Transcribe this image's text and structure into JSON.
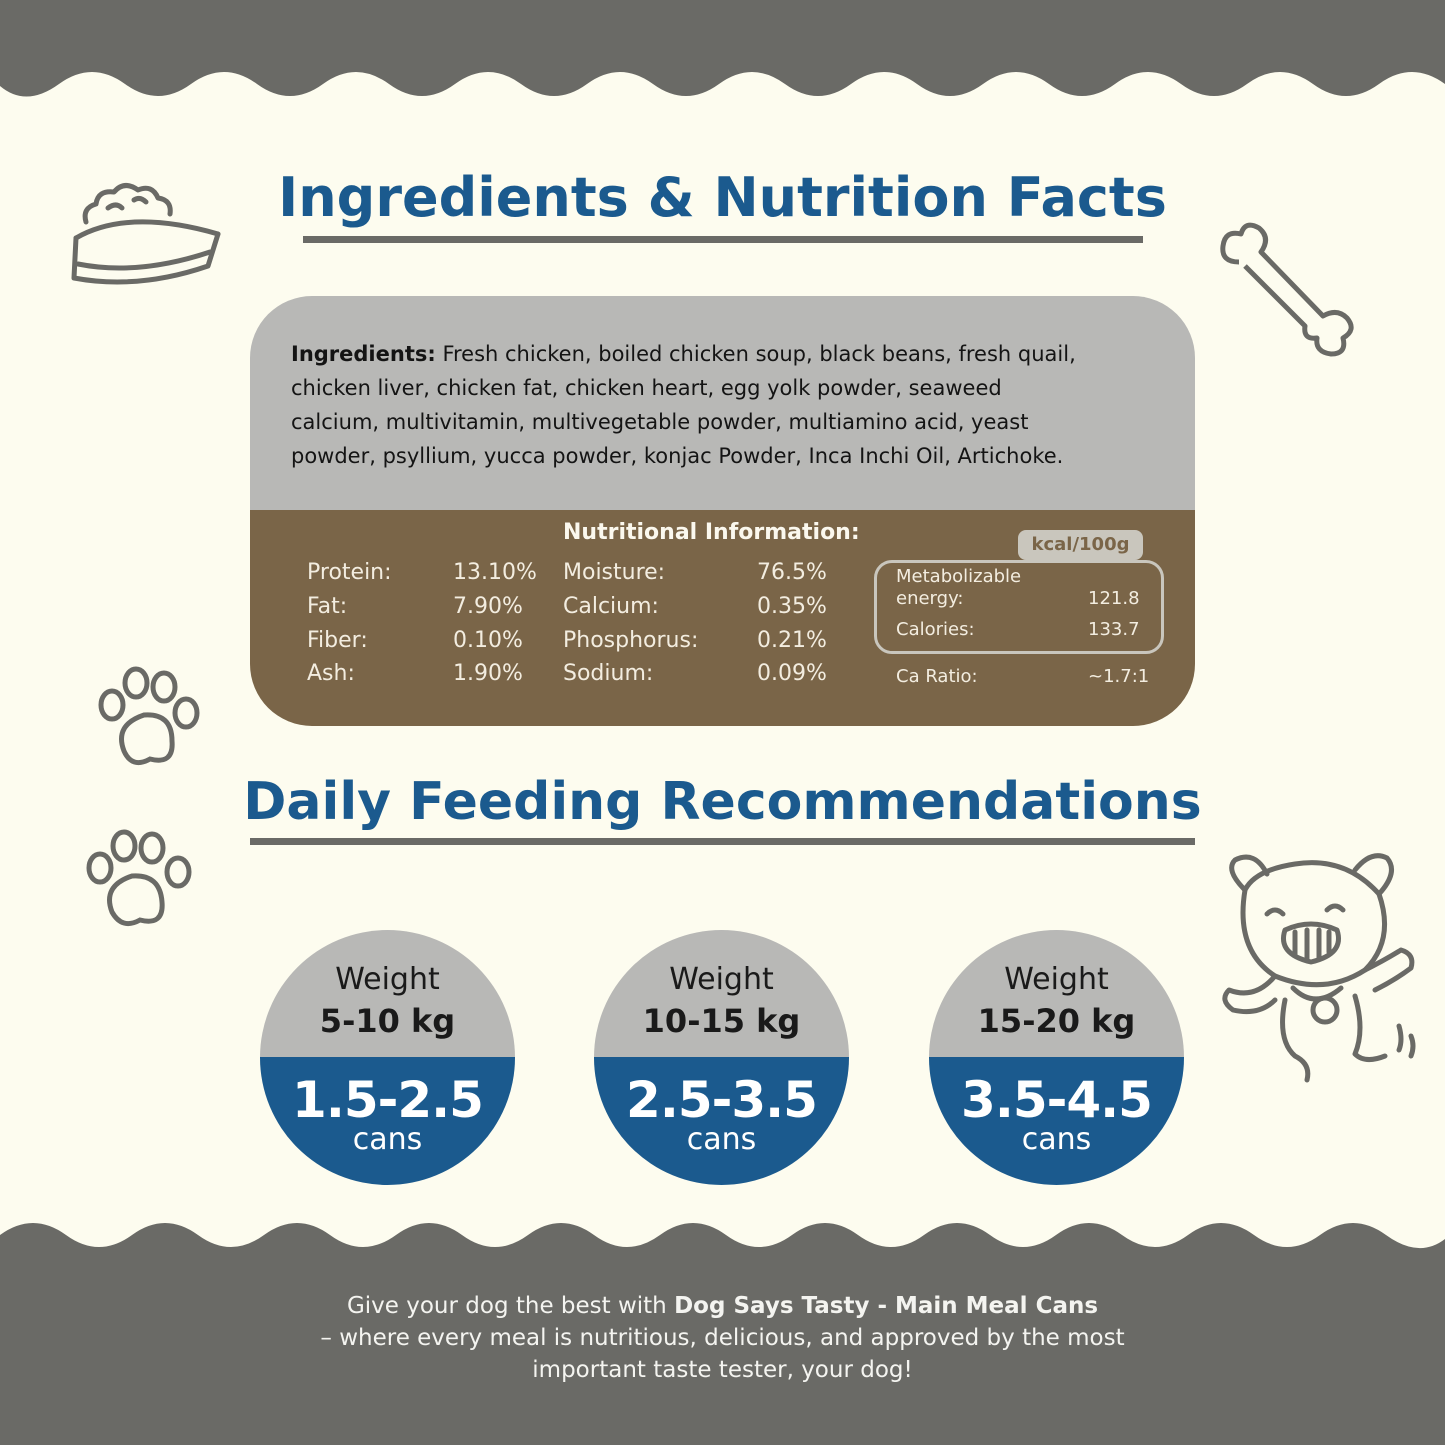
{
  "colors": {
    "background": "#fdfcef",
    "band": "#6a6a66",
    "title_blue": "#1b5a8e",
    "ingredients_gray": "#b8b8b6",
    "nutrition_brown": "#7a6548"
  },
  "titles": {
    "ingredients": "Ingredients & Nutrition Facts",
    "feeding": "Daily Feeding Recommendations"
  },
  "ingredients": {
    "label": "Ingredients:",
    "text": " Fresh chicken, boiled chicken soup, black beans, fresh quail, chicken liver, chicken fat, chicken heart, egg yolk powder, seaweed calcium, multivitamin, multivegetable powder, multiamino acid, yeast powder, psyllium, yucca powder, konjac Powder, Inca Inchi Oil, Artichoke."
  },
  "nutrition": {
    "title": "Nutritional Information:",
    "left": [
      {
        "name": "Protein:",
        "value": "13.10%"
      },
      {
        "name": "Fat:",
        "value": "7.90%"
      },
      {
        "name": "Fiber:",
        "value": "0.10%"
      },
      {
        "name": "Ash:",
        "value": "1.90%"
      }
    ],
    "middle": [
      {
        "name": "Moisture:",
        "value": "76.5%"
      },
      {
        "name": "Calcium:",
        "value": "0.35%"
      },
      {
        "name": "Phosphorus:",
        "value": "0.21%"
      },
      {
        "name": "Sodium:",
        "value": "0.09%"
      }
    ],
    "kcal_badge": "kcal/100g",
    "energy_label_1": "Metabolizable",
    "energy_label_2": "energy:",
    "energy_value": "121.8",
    "calories_label": "Calories:",
    "calories_value": "133.7",
    "ca_ratio_label": "Ca Ratio:",
    "ca_ratio_value": "~1.7:1"
  },
  "feeding": [
    {
      "weight_label": "Weight",
      "weight": "5-10 kg",
      "cans": "1.5-2.5",
      "unit": "cans"
    },
    {
      "weight_label": "Weight",
      "weight": "10-15 kg",
      "cans": "2.5-3.5",
      "unit": "cans"
    },
    {
      "weight_label": "Weight",
      "weight": "15-20 kg",
      "cans": "3.5-4.5",
      "unit": "cans"
    }
  ],
  "footer": {
    "line1_prefix": "Give your dog the best with ",
    "brand": "Dog Says Tasty - Main Meal Cans",
    "line2": "– where every meal is nutritious, delicious, and approved by the most",
    "line3": "important taste tester, your dog!"
  },
  "icons": [
    "food-bowl-icon",
    "bone-icon",
    "paw-print-icon",
    "dog-mascot-icon"
  ]
}
